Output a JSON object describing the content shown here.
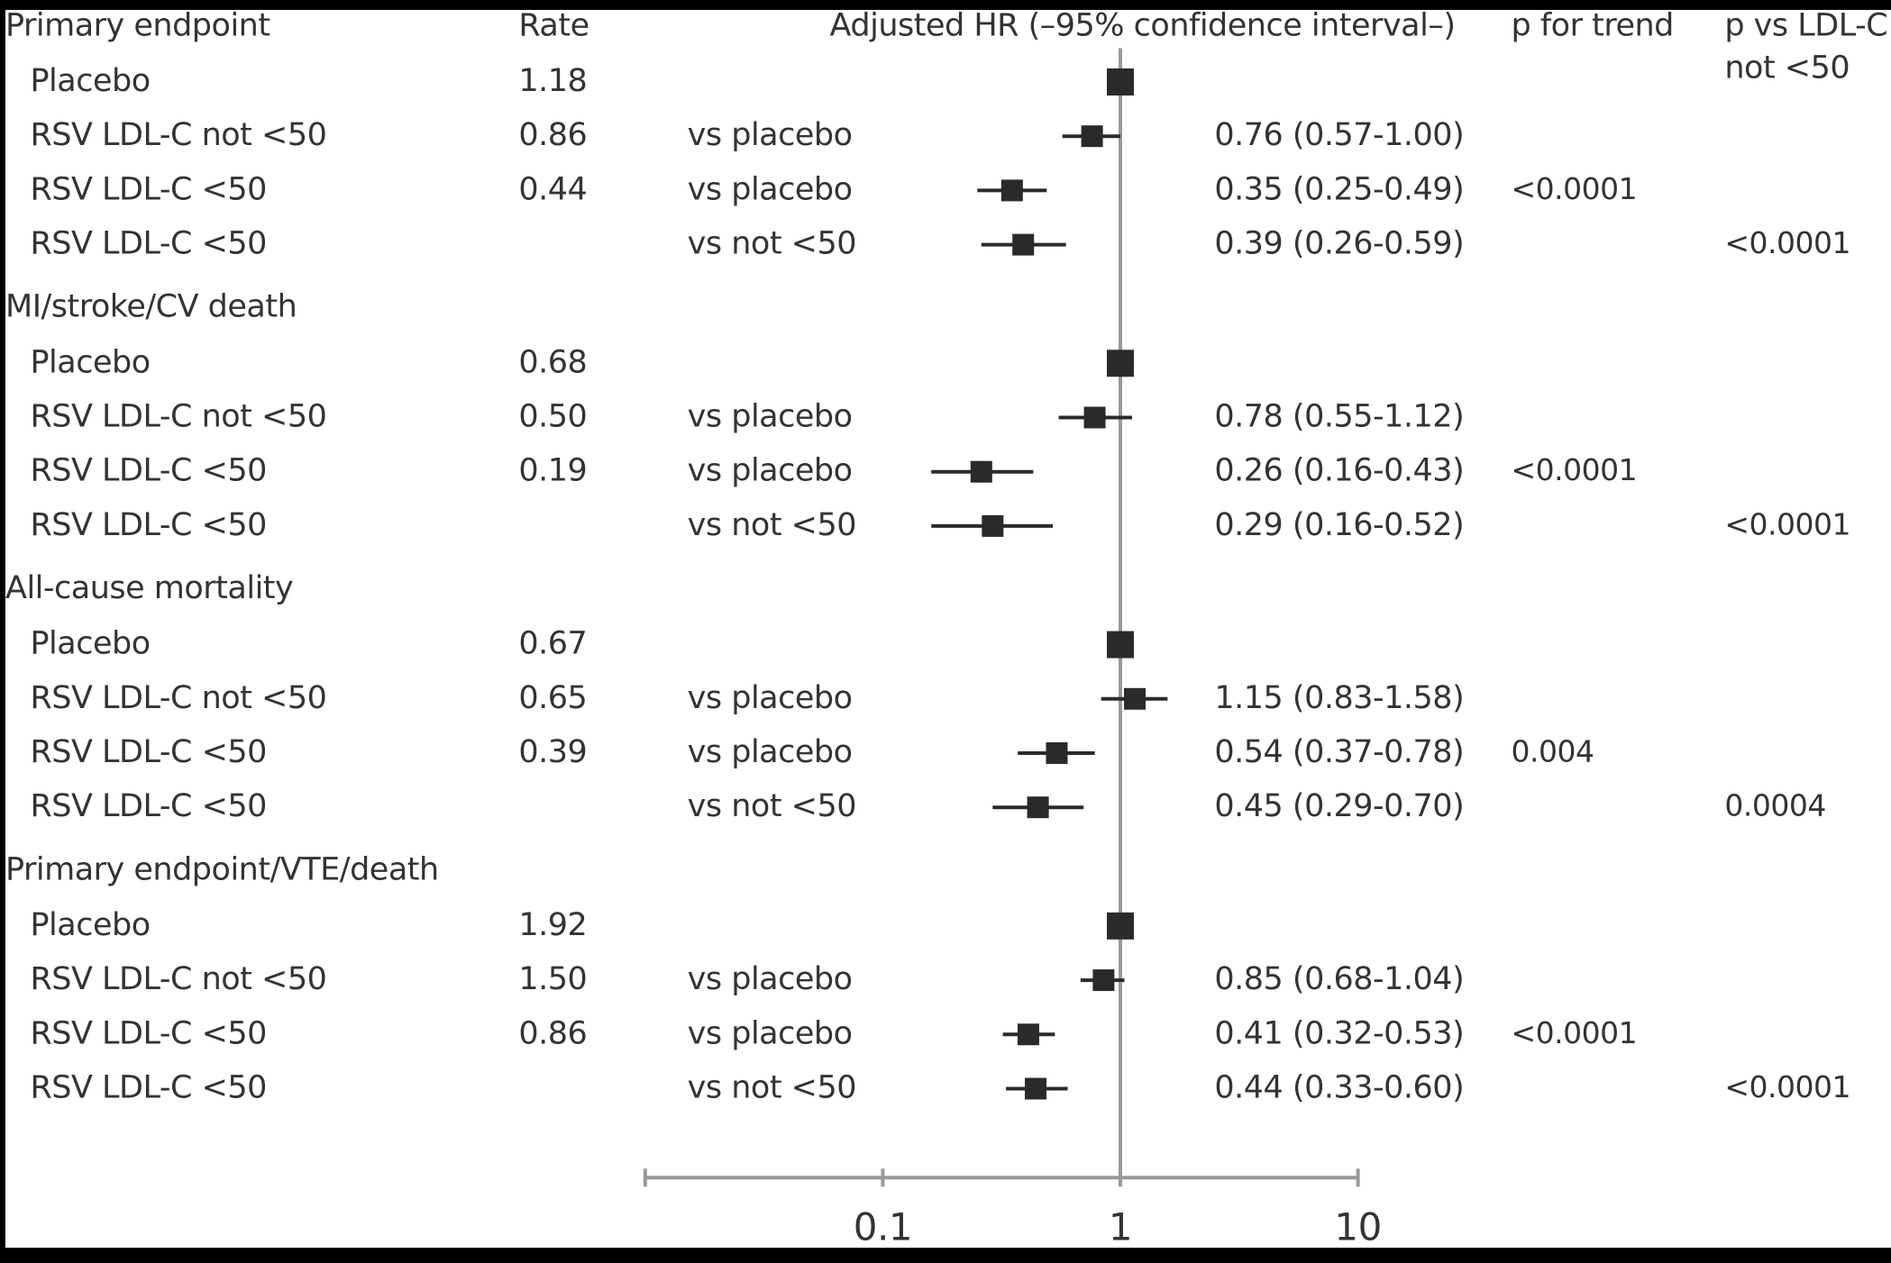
{
  "chart_data": {
    "type": "forest",
    "columns": {
      "rate": "Rate",
      "hr": "Adjusted HR (–95% confidence interval–)",
      "p_trend": "p for trend",
      "p_vs": [
        "p vs LDL-C",
        "not <50"
      ]
    },
    "x_scale": "log",
    "xlim": [
      0.01,
      10
    ],
    "xticks": [
      0.1,
      1,
      10
    ],
    "marker_color": "#2a2a2a",
    "sections": [
      {
        "title": "Primary endpoint",
        "rows": [
          {
            "label": "Placebo",
            "rate": "1.18",
            "comparison": null,
            "hr": 1,
            "lo": null,
            "hi": null,
            "hr_label": null,
            "p_trend": null,
            "p_vs": null
          },
          {
            "label": "RSV LDL-C not <50",
            "rate": "0.86",
            "comparison": "vs placebo",
            "hr": 0.76,
            "lo": 0.57,
            "hi": 1.0,
            "hr_label": "0.76 (0.57-1.00)",
            "p_trend": null,
            "p_vs": null
          },
          {
            "label": "RSV LDL-C <50",
            "rate": "0.44",
            "comparison": "vs placebo",
            "hr": 0.35,
            "lo": 0.25,
            "hi": 0.49,
            "hr_label": "0.35 (0.25-0.49)",
            "p_trend": "<0.0001",
            "p_vs": null
          },
          {
            "label": "RSV LDL-C <50",
            "rate": null,
            "comparison": "vs not <50",
            "hr": 0.39,
            "lo": 0.26,
            "hi": 0.59,
            "hr_label": "0.39 (0.26-0.59)",
            "p_trend": null,
            "p_vs": "<0.0001"
          }
        ]
      },
      {
        "title": "MI/stroke/CV death",
        "rows": [
          {
            "label": "Placebo",
            "rate": "0.68",
            "comparison": null,
            "hr": 1,
            "lo": null,
            "hi": null,
            "hr_label": null,
            "p_trend": null,
            "p_vs": null
          },
          {
            "label": "RSV LDL-C not <50",
            "rate": "0.50",
            "comparison": "vs placebo",
            "hr": 0.78,
            "lo": 0.55,
            "hi": 1.12,
            "hr_label": "0.78 (0.55-1.12)",
            "p_trend": null,
            "p_vs": null
          },
          {
            "label": "RSV LDL-C <50",
            "rate": "0.19",
            "comparison": "vs placebo",
            "hr": 0.26,
            "lo": 0.16,
            "hi": 0.43,
            "hr_label": "0.26 (0.16-0.43)",
            "p_trend": "<0.0001",
            "p_vs": null
          },
          {
            "label": "RSV LDL-C <50",
            "rate": null,
            "comparison": "vs not <50",
            "hr": 0.29,
            "lo": 0.16,
            "hi": 0.52,
            "hr_label": "0.29 (0.16-0.52)",
            "p_trend": null,
            "p_vs": "<0.0001"
          }
        ]
      },
      {
        "title": "All-cause mortality",
        "rows": [
          {
            "label": "Placebo",
            "rate": "0.67",
            "comparison": null,
            "hr": 1,
            "lo": null,
            "hi": null,
            "hr_label": null,
            "p_trend": null,
            "p_vs": null
          },
          {
            "label": "RSV LDL-C not <50",
            "rate": "0.65",
            "comparison": "vs placebo",
            "hr": 1.15,
            "lo": 0.83,
            "hi": 1.58,
            "hr_label": "1.15 (0.83-1.58)",
            "p_trend": null,
            "p_vs": null
          },
          {
            "label": "RSV LDL-C <50",
            "rate": "0.39",
            "comparison": "vs placebo",
            "hr": 0.54,
            "lo": 0.37,
            "hi": 0.78,
            "hr_label": "0.54 (0.37-0.78)",
            "p_trend": "0.004",
            "p_vs": null
          },
          {
            "label": "RSV LDL-C <50",
            "rate": null,
            "comparison": "vs not <50",
            "hr": 0.45,
            "lo": 0.29,
            "hi": 0.7,
            "hr_label": "0.45 (0.29-0.70)",
            "p_trend": null,
            "p_vs": "0.0004"
          }
        ]
      },
      {
        "title": "Primary endpoint/VTE/death",
        "rows": [
          {
            "label": "Placebo",
            "rate": "1.92",
            "comparison": null,
            "hr": 1,
            "lo": null,
            "hi": null,
            "hr_label": null,
            "p_trend": null,
            "p_vs": null
          },
          {
            "label": "RSV LDL-C not <50",
            "rate": "1.50",
            "comparison": "vs placebo",
            "hr": 0.85,
            "lo": 0.68,
            "hi": 1.04,
            "hr_label": "0.85 (0.68-1.04)",
            "p_trend": null,
            "p_vs": null
          },
          {
            "label": "RSV LDL-C <50",
            "rate": "0.86",
            "comparison": "vs placebo",
            "hr": 0.41,
            "lo": 0.32,
            "hi": 0.53,
            "hr_label": "0.41 (0.32-0.53)",
            "p_trend": "<0.0001",
            "p_vs": null
          },
          {
            "label": "RSV LDL-C <50",
            "rate": null,
            "comparison": "vs not <50",
            "hr": 0.44,
            "lo": 0.33,
            "hi": 0.6,
            "hr_label": "0.44 (0.33-0.60)",
            "p_trend": null,
            "p_vs": "<0.0001"
          }
        ]
      }
    ]
  }
}
